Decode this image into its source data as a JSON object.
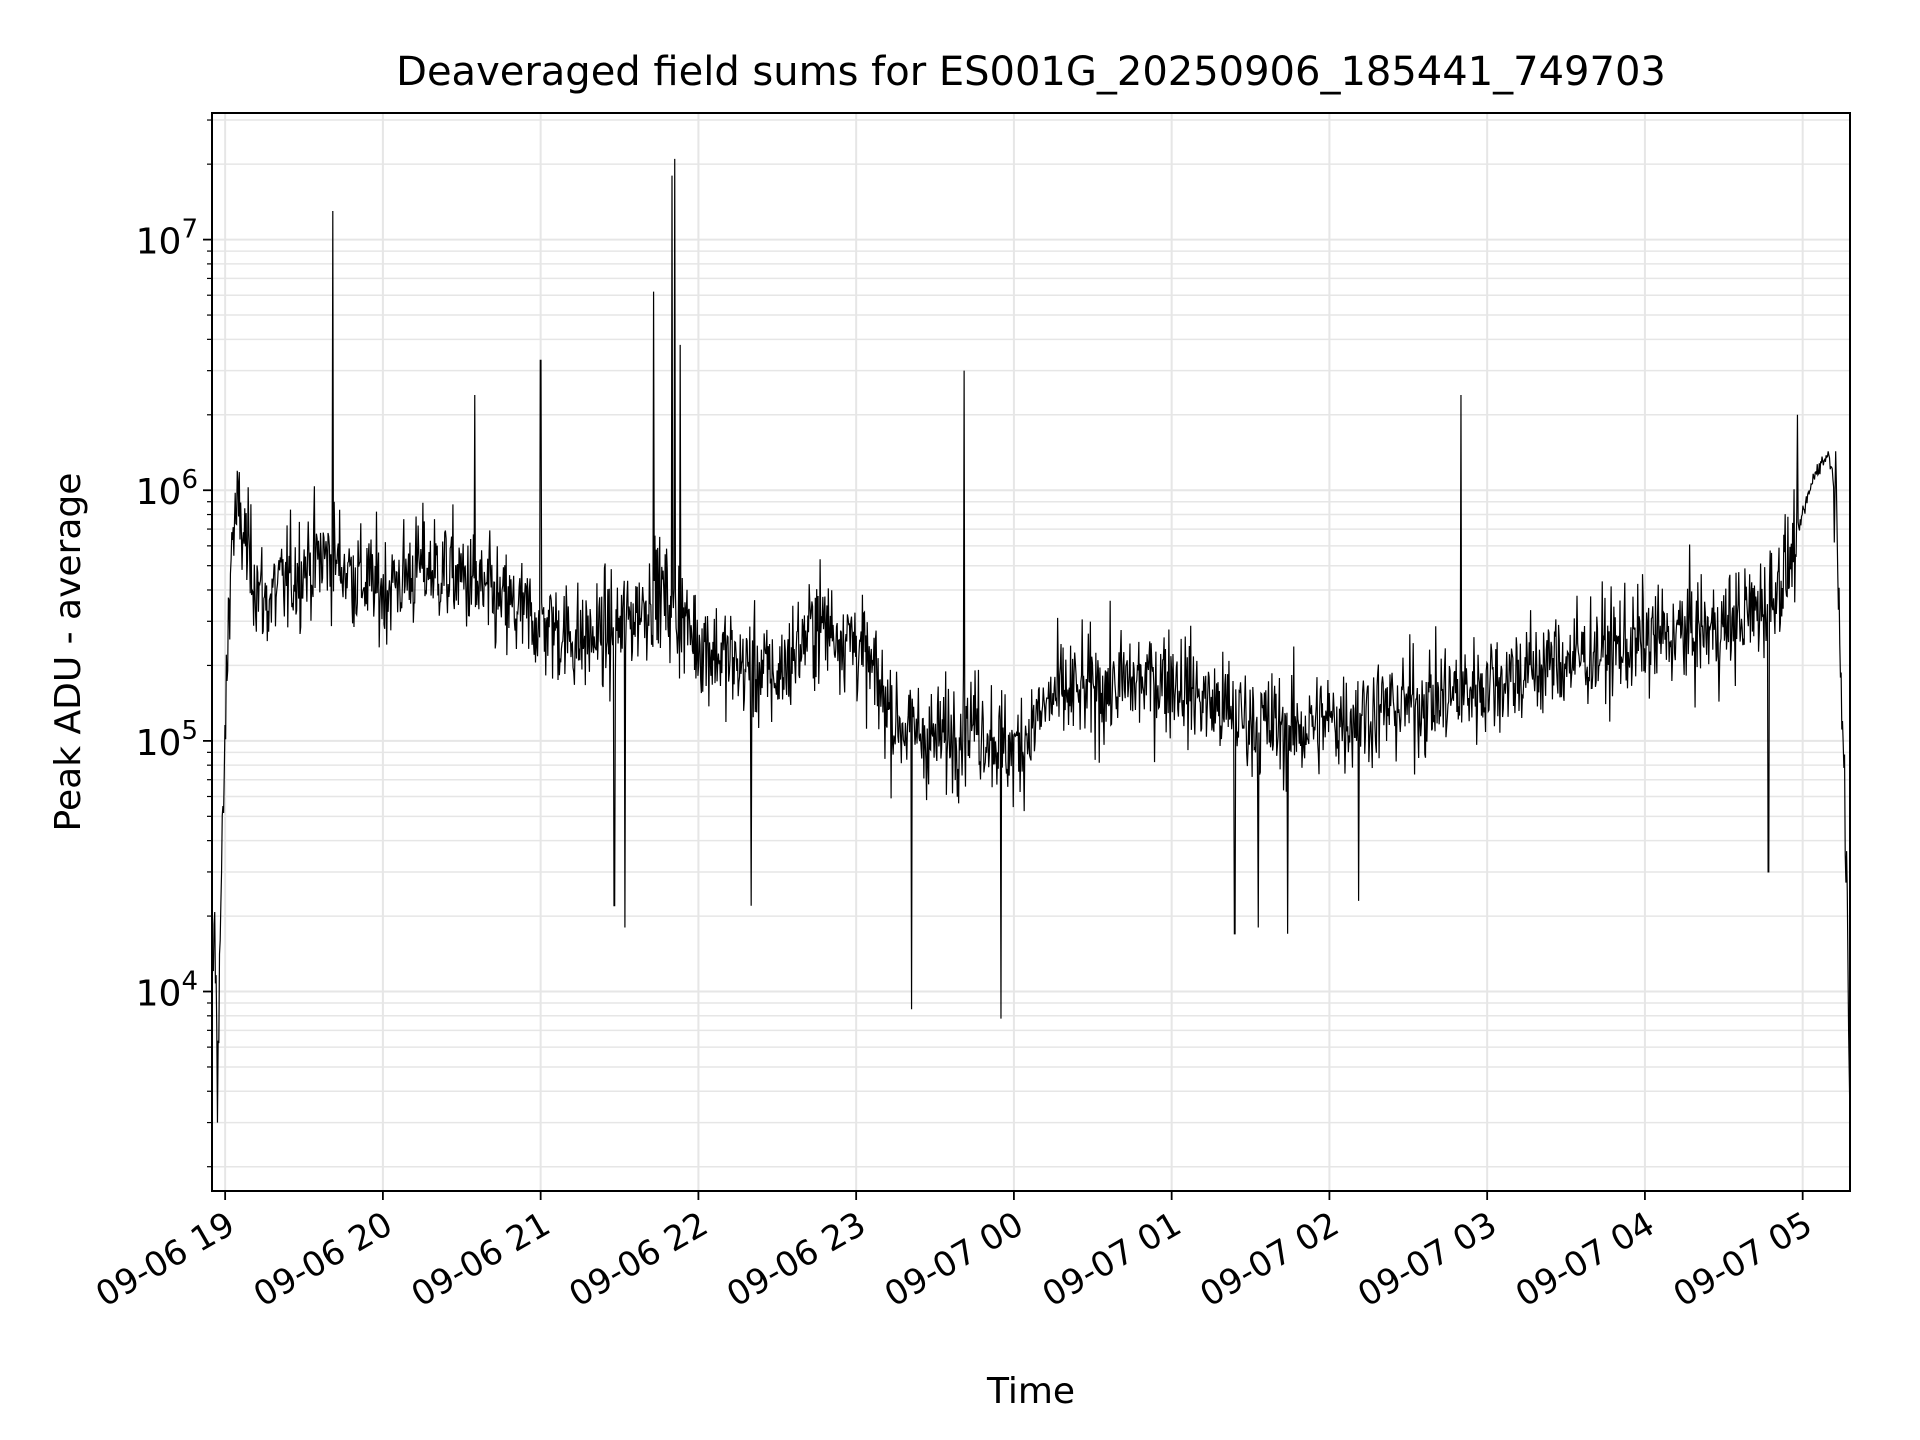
{
  "chart_data": {
    "type": "line",
    "title": "Deaveraged field sums for ES001G_20250906_185441_749703",
    "xlabel": "Time",
    "ylabel": "Peak ADU - average",
    "yscale": "log",
    "ylim": [
      1600,
      32000000
    ],
    "xlim": [
      "2025-09-06 18:55",
      "2025-09-07 05:18"
    ],
    "grid": true,
    "legend": "none",
    "line_color": "#000000",
    "grid_color": "#e6e6e6",
    "x_ticks": [
      "09-06 19",
      "09-06 20",
      "09-06 21",
      "09-06 22",
      "09-06 23",
      "09-07 00",
      "09-07 01",
      "09-07 02",
      "09-07 03",
      "09-07 04",
      "09-07 05"
    ],
    "x_tick_times": [
      "2025-09-06 19:00",
      "2025-09-06 20:00",
      "2025-09-06 21:00",
      "2025-09-06 22:00",
      "2025-09-06 23:00",
      "2025-09-07 00:00",
      "2025-09-07 01:00",
      "2025-09-07 02:00",
      "2025-09-07 03:00",
      "2025-09-07 04:00",
      "2025-09-07 05:00"
    ],
    "y_ticks": [
      {
        "value": 10000,
        "base": "10",
        "exp": "4"
      },
      {
        "value": 100000,
        "base": "10",
        "exp": "5"
      },
      {
        "value": 1000000,
        "base": "10",
        "exp": "6"
      },
      {
        "value": 10000000,
        "base": "10",
        "exp": "7"
      }
    ],
    "series": [
      {
        "x": [
          "2025-09-06 18:55",
          "2025-09-06 18:56",
          "2025-09-06 18:57",
          "2025-09-06 18:58",
          "2025-09-06 18:59",
          "2025-09-06 19:00",
          "2025-09-06 19:01",
          "2025-09-06 19:02",
          "2025-09-06 19:03",
          "2025-09-06 19:05",
          "2025-09-06 19:08",
          "2025-09-06 19:10",
          "2025-09-06 19:15",
          "2025-09-06 19:20",
          "2025-09-06 19:30",
          "2025-09-06 19:40",
          "2025-09-06 19:50",
          "2025-09-06 20:00",
          "2025-09-06 20:15",
          "2025-09-06 20:30",
          "2025-09-06 20:45",
          "2025-09-06 21:00",
          "2025-09-06 21:15",
          "2025-09-06 21:30",
          "2025-09-06 21:45",
          "2025-09-06 22:00",
          "2025-09-06 22:15",
          "2025-09-06 22:30",
          "2025-09-06 22:45",
          "2025-09-06 23:00",
          "2025-09-06 23:15",
          "2025-09-06 23:30",
          "2025-09-06 23:45",
          "2025-09-07 00:00",
          "2025-09-07 00:15",
          "2025-09-07 00:30",
          "2025-09-07 00:45",
          "2025-09-07 01:00",
          "2025-09-07 01:15",
          "2025-09-07 01:30",
          "2025-09-07 01:45",
          "2025-09-07 02:00",
          "2025-09-07 02:15",
          "2025-09-07 02:30",
          "2025-09-07 02:45",
          "2025-09-07 03:00",
          "2025-09-07 03:15",
          "2025-09-07 03:30",
          "2025-09-07 03:45",
          "2025-09-07 04:00",
          "2025-09-07 04:15",
          "2025-09-07 04:30",
          "2025-09-07 04:45",
          "2025-09-07 04:55",
          "2025-09-07 05:00",
          "2025-09-07 05:05",
          "2025-09-07 05:10",
          "2025-09-07 05:13",
          "2025-09-07 05:16",
          "2025-09-07 05:18"
        ],
        "y": [
          8000,
          20000,
          5000,
          15000,
          40000,
          100000,
          250000,
          500000,
          700000,
          800000,
          600000,
          500000,
          350000,
          400000,
          500000,
          550000,
          450000,
          400000,
          500000,
          450000,
          350000,
          300000,
          250000,
          280000,
          400000,
          250000,
          200000,
          180000,
          300000,
          250000,
          120000,
          100000,
          120000,
          90000,
          150000,
          160000,
          170000,
          180000,
          140000,
          120000,
          110000,
          120000,
          130000,
          140000,
          150000,
          170000,
          190000,
          210000,
          230000,
          250000,
          270000,
          280000,
          350000,
          500000,
          800000,
          1200000,
          1400000,
          900000,
          60000,
          3000
        ]
      }
    ],
    "spikes": {
      "x": [
        "2025-09-06 19:41",
        "2025-09-06 20:35",
        "2025-09-06 21:00",
        "2025-09-06 21:43",
        "2025-09-06 21:50",
        "2025-09-06 21:51",
        "2025-09-06 21:53",
        "2025-09-06 23:41",
        "2025-09-07 02:50",
        "2025-09-07 04:58"
      ],
      "y": [
        13000000,
        2400000,
        3300000,
        6200000,
        18000000,
        21000000,
        3800000,
        3000000,
        2400000,
        2000000
      ]
    },
    "dips": {
      "x": [
        "2025-09-06 18:57",
        "2025-09-06 21:28",
        "2025-09-06 21:32",
        "2025-09-06 22:20",
        "2025-09-06 23:21",
        "2025-09-06 23:55",
        "2025-09-07 01:24",
        "2025-09-07 01:33",
        "2025-09-07 01:44",
        "2025-09-07 02:11",
        "2025-09-07 04:47",
        "2025-09-07 05:18"
      ],
      "y": [
        3000,
        22000,
        18000,
        22000,
        8500,
        7800,
        17000,
        18000,
        17000,
        23000,
        30000,
        3000
      ]
    }
  }
}
